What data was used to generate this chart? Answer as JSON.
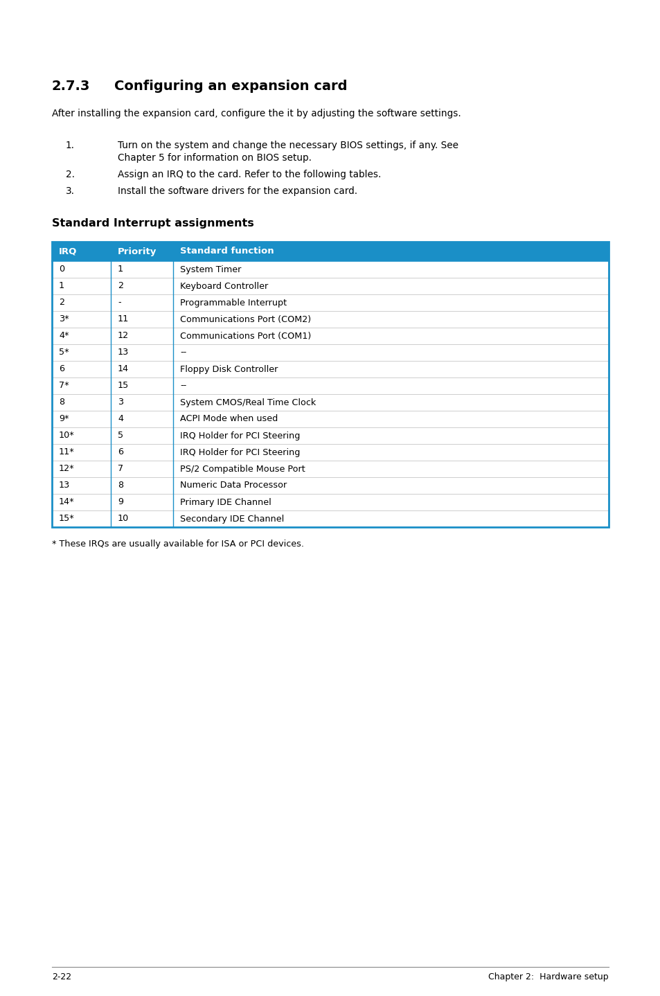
{
  "section_number": "2.7.3",
  "section_title": "Configuring an expansion card",
  "intro_text": "After installing the expansion card, configure the it by adjusting the software settings.",
  "steps": [
    [
      "Turn on the system and change the necessary BIOS settings, if any. See",
      "Chapter 5 for information on BIOS setup."
    ],
    [
      "Assign an IRQ to the card. Refer to the following tables."
    ],
    [
      "Install the software drivers for the expansion card."
    ]
  ],
  "table_title": "Standard Interrupt assignments",
  "table_header": [
    "IRQ",
    "Priority",
    "Standard function"
  ],
  "table_header_bg": "#1a8fc7",
  "table_header_color": "#ffffff",
  "table_border_color": "#1a8fc7",
  "table_row_line_color": "#bbbbbb",
  "table_rows": [
    [
      "0",
      "1",
      "System Timer"
    ],
    [
      "1",
      "2",
      "Keyboard Controller"
    ],
    [
      "2",
      "-",
      "Programmable Interrupt"
    ],
    [
      "3*",
      "11",
      "Communications Port (COM2)"
    ],
    [
      "4*",
      "12",
      "Communications Port (COM1)"
    ],
    [
      "5*",
      "13",
      "--"
    ],
    [
      "6",
      "14",
      "Floppy Disk Controller"
    ],
    [
      "7*",
      "15",
      "--"
    ],
    [
      "8",
      "3",
      "System CMOS/Real Time Clock"
    ],
    [
      "9*",
      "4",
      "ACPI Mode when used"
    ],
    [
      "10*",
      "5",
      "IRQ Holder for PCI Steering"
    ],
    [
      "11*",
      "6",
      "IRQ Holder for PCI Steering"
    ],
    [
      "12*",
      "7",
      "PS/2 Compatible Mouse Port"
    ],
    [
      "13",
      "8",
      "Numeric Data Processor"
    ],
    [
      "14*",
      "9",
      "Primary IDE Channel"
    ],
    [
      "15*",
      "10",
      "Secondary IDE Channel"
    ]
  ],
  "footnote": "* These IRQs are usually available for ISA or PCI devices.",
  "footer_left": "2-22",
  "footer_right": "Chapter 2:  Hardware setup",
  "page_bg": "#ffffff"
}
